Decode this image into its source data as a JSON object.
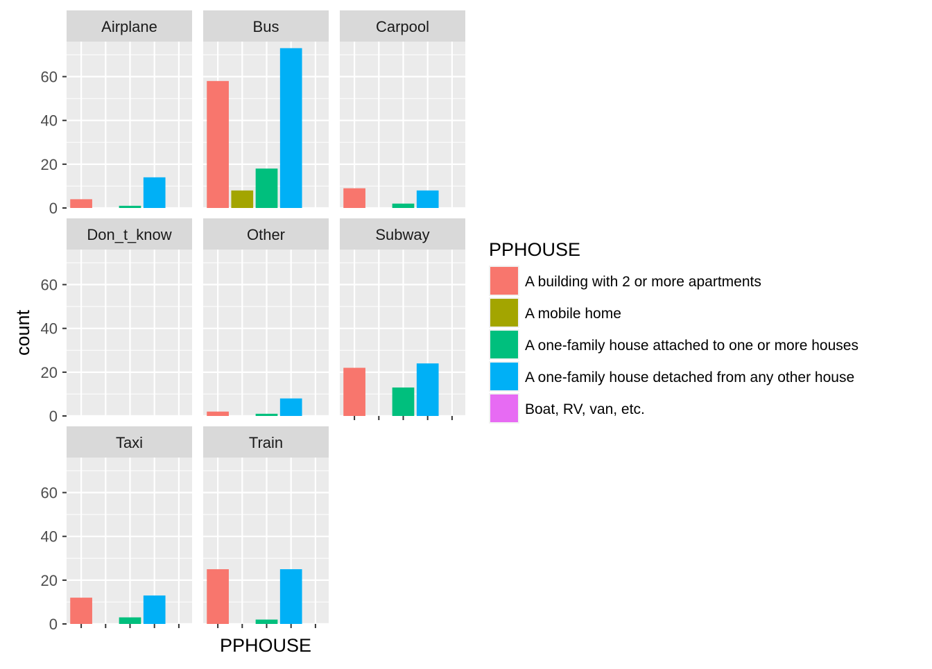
{
  "chart_data": {
    "type": "bar",
    "layout": "facet_wrap",
    "xlabel": "PPHOUSE",
    "ylabel": "count",
    "ylim": [
      0,
      76
    ],
    "yticks": [
      0,
      20,
      40,
      60
    ],
    "grid": true,
    "legend": {
      "title": "PPHOUSE",
      "placement": "right",
      "entries": [
        {
          "label": "A building with 2 or more apartments",
          "color": "#F8766D"
        },
        {
          "label": "A mobile home",
          "color": "#A3A500"
        },
        {
          "label": "A one-family house attached to one or more houses",
          "color": "#00BF7D"
        },
        {
          "label": "A one-family house detached from any other house",
          "color": "#00B0F6"
        },
        {
          "label": "Boat, RV, van, etc.",
          "color": "#E76BF3"
        }
      ]
    },
    "panels": [
      {
        "name": "Airplane",
        "values": [
          4,
          0,
          1,
          14,
          0
        ]
      },
      {
        "name": "Bus",
        "values": [
          58,
          8,
          18,
          73,
          0
        ]
      },
      {
        "name": "Carpool",
        "values": [
          9,
          0,
          2,
          8,
          0
        ]
      },
      {
        "name": "Don_t_know",
        "values": [
          0,
          0,
          0,
          0,
          0
        ]
      },
      {
        "name": "Other",
        "values": [
          2,
          0,
          1,
          8,
          0
        ]
      },
      {
        "name": "Subway",
        "values": [
          22,
          0,
          13,
          24,
          0
        ]
      },
      {
        "name": "Taxi",
        "values": [
          12,
          0,
          3,
          13,
          0
        ]
      },
      {
        "name": "Train",
        "values": [
          25,
          0,
          2,
          25,
          0
        ]
      }
    ]
  }
}
